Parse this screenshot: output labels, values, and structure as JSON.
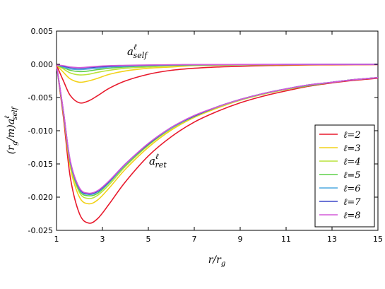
{
  "chart_data": {
    "type": "line",
    "xlabel": "r/r_g",
    "ylabel": "(r_g/m)a^ℓ_self",
    "xlim": [
      1,
      15
    ],
    "ylim": [
      -0.025,
      0.005
    ],
    "xticks": [
      "1",
      "3",
      "5",
      "7",
      "9",
      "11",
      "13",
      "15"
    ],
    "yticks": [
      "0.005",
      "0.000",
      "-0.005",
      "-0.010",
      "-0.015",
      "-0.020",
      "-0.025"
    ],
    "grid": false,
    "legend_position": "bottom-right",
    "annotations": [
      {
        "label": "a^ℓ_self",
        "x": 5.0,
        "y": 0.0012
      },
      {
        "label": "a^ℓ_ret",
        "x": 5.0,
        "y": -0.0165
      }
    ],
    "series": [
      {
        "name": "ℓ=2",
        "color": "#e8192c",
        "ret": {
          "x": [
            1.0,
            1.3,
            1.6,
            2.0,
            2.4,
            2.8,
            3.3,
            4.0,
            5.0,
            6.0,
            7.0,
            8.0,
            9.0,
            10.0,
            11.0,
            12.0,
            13.0,
            14.0,
            15.0
          ],
          "y": [
            -0.0001,
            -0.008,
            -0.017,
            -0.0225,
            -0.0239,
            -0.0232,
            -0.021,
            -0.0177,
            -0.0138,
            -0.0109,
            -0.0087,
            -0.0071,
            -0.0058,
            -0.0048,
            -0.004,
            -0.0033,
            -0.0028,
            -0.0024,
            -0.0021
          ]
        },
        "self": {
          "x": [
            1.0,
            1.3,
            1.6,
            2.0,
            2.4,
            2.8,
            3.3,
            4.0,
            5.0,
            6.0,
            7.0,
            8.0,
            9.0,
            10.0,
            11.0,
            12.0,
            13.0,
            14.0,
            15.0
          ],
          "y": [
            -0.0001,
            -0.0025,
            -0.0047,
            -0.0058,
            -0.0055,
            -0.0047,
            -0.0036,
            -0.0025,
            -0.0015,
            -0.0009,
            -0.0006,
            -0.0004,
            -0.0003,
            -0.0002,
            -0.00015,
            -0.0001,
            -8e-05,
            -6e-05,
            -5e-05
          ]
        }
      },
      {
        "name": "ℓ=3",
        "color": "#f2d21a",
        "ret": {
          "x": [
            1.0,
            1.3,
            1.6,
            2.0,
            2.4,
            2.8,
            3.3,
            4.0,
            5.0,
            6.0,
            7.0,
            8.0,
            9.0,
            10.0,
            11.0,
            12.0,
            13.0,
            14.0,
            15.0
          ],
          "y": [
            -0.0001,
            -0.0075,
            -0.0155,
            -0.02,
            -0.021,
            -0.0204,
            -0.0186,
            -0.0158,
            -0.0125,
            -0.0099,
            -0.008,
            -0.0066,
            -0.0054,
            -0.0045,
            -0.0038,
            -0.0032,
            -0.0027,
            -0.0023,
            -0.002
          ]
        },
        "self": {
          "x": [
            1.0,
            1.3,
            1.6,
            2.0,
            2.4,
            2.8,
            3.3,
            4.0,
            5.0,
            6.0,
            7.0,
            8.0,
            9.0,
            10.0,
            11.0,
            12.0,
            13.0,
            14.0,
            15.0
          ],
          "y": [
            -0.0001,
            -0.0012,
            -0.0022,
            -0.0027,
            -0.0025,
            -0.0021,
            -0.0015,
            -0.001,
            -0.0006,
            -0.0004,
            -0.0002,
            -0.00015,
            -0.0001,
            -8e-05,
            -6e-05,
            -5e-05,
            -4e-05,
            -3e-05,
            -2e-05
          ]
        }
      },
      {
        "name": "ℓ=4",
        "color": "#b8e23a",
        "ret": {
          "x": [
            1.0,
            1.3,
            1.6,
            2.0,
            2.4,
            2.8,
            3.3,
            4.0,
            5.0,
            6.0,
            7.0,
            8.0,
            9.0,
            10.0,
            11.0,
            12.0,
            13.0,
            14.0,
            15.0
          ],
          "y": [
            -0.0001,
            -0.0073,
            -0.015,
            -0.0193,
            -0.0202,
            -0.0197,
            -0.0181,
            -0.0154,
            -0.0122,
            -0.0097,
            -0.0079,
            -0.0065,
            -0.0054,
            -0.0045,
            -0.0038,
            -0.0032,
            -0.0027,
            -0.0023,
            -0.002
          ]
        },
        "self": {
          "x": [
            1.0,
            1.3,
            1.6,
            2.0,
            2.4,
            2.8,
            3.3,
            4.0,
            5.0,
            6.0,
            7.0,
            8.0,
            9.0,
            10.0,
            11.0,
            12.0,
            13.0,
            14.0,
            15.0
          ],
          "y": [
            -0.0001,
            -0.0007,
            -0.0013,
            -0.0016,
            -0.0015,
            -0.0012,
            -0.0009,
            -0.0006,
            -0.0004,
            -0.0002,
            -0.00015,
            -0.0001,
            -7e-05,
            -5e-05,
            -4e-05,
            -3e-05,
            -2e-05,
            -2e-05,
            -1e-05
          ]
        }
      },
      {
        "name": "ℓ=5",
        "color": "#5fd04a",
        "ret": {
          "x": [
            1.0,
            1.3,
            1.6,
            2.0,
            2.4,
            2.8,
            3.3,
            4.0,
            5.0,
            6.0,
            7.0,
            8.0,
            9.0,
            10.0,
            11.0,
            12.0,
            13.0,
            14.0,
            15.0
          ],
          "y": [
            -0.0001,
            -0.0072,
            -0.0148,
            -0.019,
            -0.0198,
            -0.0194,
            -0.0178,
            -0.0152,
            -0.0121,
            -0.0096,
            -0.0078,
            -0.0064,
            -0.0053,
            -0.0044,
            -0.0037,
            -0.0032,
            -0.0027,
            -0.0023,
            -0.002
          ]
        },
        "self": {
          "x": [
            1.0,
            1.3,
            1.6,
            2.0,
            2.4,
            2.8,
            3.3,
            4.0,
            5.0,
            6.0,
            7.0,
            8.0,
            9.0,
            10.0,
            11.0,
            12.0,
            13.0,
            14.0,
            15.0
          ],
          "y": [
            -0.0001,
            -0.0005,
            -0.0009,
            -0.0011,
            -0.001,
            -0.0008,
            -0.0006,
            -0.0004,
            -0.00025,
            -0.00015,
            -0.0001,
            -7e-05,
            -5e-05,
            -4e-05,
            -3e-05,
            -2e-05,
            -2e-05,
            -1e-05,
            -1e-05
          ]
        }
      },
      {
        "name": "ℓ=6",
        "color": "#4fa8e0",
        "ret": {
          "x": [
            1.0,
            1.3,
            1.6,
            2.0,
            2.4,
            2.8,
            3.3,
            4.0,
            5.0,
            6.0,
            7.0,
            8.0,
            9.0,
            10.0,
            11.0,
            12.0,
            13.0,
            14.0,
            15.0
          ],
          "y": [
            -0.0001,
            -0.0071,
            -0.0147,
            -0.0188,
            -0.0196,
            -0.0192,
            -0.0177,
            -0.0151,
            -0.012,
            -0.0096,
            -0.0078,
            -0.0064,
            -0.0053,
            -0.0044,
            -0.0037,
            -0.0031,
            -0.0027,
            -0.0023,
            -0.002
          ]
        },
        "self": {
          "x": [
            1.0,
            1.3,
            1.6,
            2.0,
            2.4,
            2.8,
            3.3,
            4.0,
            5.0,
            6.0,
            7.0,
            8.0,
            9.0,
            10.0,
            11.0,
            12.0,
            13.0,
            14.0,
            15.0
          ],
          "y": [
            -0.0001,
            -0.0004,
            -0.0007,
            -0.0008,
            -0.0007,
            -0.0006,
            -0.0004,
            -0.0003,
            -0.00018,
            -0.00011,
            -7e-05,
            -5e-05,
            -4e-05,
            -3e-05,
            -2e-05,
            -2e-05,
            -1e-05,
            -1e-05,
            -1e-05
          ]
        }
      },
      {
        "name": "ℓ=7",
        "color": "#3c46c8",
        "ret": {
          "x": [
            1.0,
            1.3,
            1.6,
            2.0,
            2.4,
            2.8,
            3.3,
            4.0,
            5.0,
            6.0,
            7.0,
            8.0,
            9.0,
            10.0,
            11.0,
            12.0,
            13.0,
            14.0,
            15.0
          ],
          "y": [
            -0.0001,
            -0.0071,
            -0.0146,
            -0.0187,
            -0.0195,
            -0.0191,
            -0.0176,
            -0.015,
            -0.012,
            -0.0095,
            -0.0078,
            -0.0064,
            -0.0053,
            -0.0044,
            -0.0037,
            -0.0031,
            -0.0027,
            -0.0023,
            -0.002
          ]
        },
        "self": {
          "x": [
            1.0,
            1.3,
            1.6,
            2.0,
            2.4,
            2.8,
            3.3,
            4.0,
            5.0,
            6.0,
            7.0,
            8.0,
            9.0,
            10.0,
            11.0,
            12.0,
            13.0,
            14.0,
            15.0
          ],
          "y": [
            -0.0001,
            -0.0003,
            -0.0005,
            -0.0006,
            -0.0005,
            -0.0004,
            -0.0003,
            -0.0002,
            -0.00013,
            -8e-05,
            -5e-05,
            -4e-05,
            -3e-05,
            -2e-05,
            -2e-05,
            -1e-05,
            -1e-05,
            -1e-05,
            -1e-05
          ]
        }
      },
      {
        "name": "ℓ=8",
        "color": "#d45ad8",
        "ret": {
          "x": [
            1.0,
            1.3,
            1.6,
            2.0,
            2.4,
            2.8,
            3.3,
            4.0,
            5.0,
            6.0,
            7.0,
            8.0,
            9.0,
            10.0,
            11.0,
            12.0,
            13.0,
            14.0,
            15.0
          ],
          "y": [
            -0.0001,
            -0.007,
            -0.0145,
            -0.0186,
            -0.0194,
            -0.019,
            -0.0175,
            -0.015,
            -0.0119,
            -0.0095,
            -0.0077,
            -0.0064,
            -0.0053,
            -0.0044,
            -0.0037,
            -0.0031,
            -0.0027,
            -0.0023,
            -0.002
          ]
        },
        "self": {
          "x": [
            1.0,
            1.3,
            1.6,
            2.0,
            2.4,
            2.8,
            3.3,
            4.0,
            5.0,
            6.0,
            7.0,
            8.0,
            9.0,
            10.0,
            11.0,
            12.0,
            13.0,
            14.0,
            15.0
          ],
          "y": [
            -0.0001,
            -0.0002,
            -0.0004,
            -0.0005,
            -0.0004,
            -0.0003,
            -0.0002,
            -0.00015,
            -0.0001,
            -6e-05,
            -4e-05,
            -3e-05,
            -2e-05,
            -2e-05,
            -1e-05,
            -1e-05,
            -1e-05,
            -1e-05,
            -1e-05
          ]
        }
      }
    ]
  }
}
